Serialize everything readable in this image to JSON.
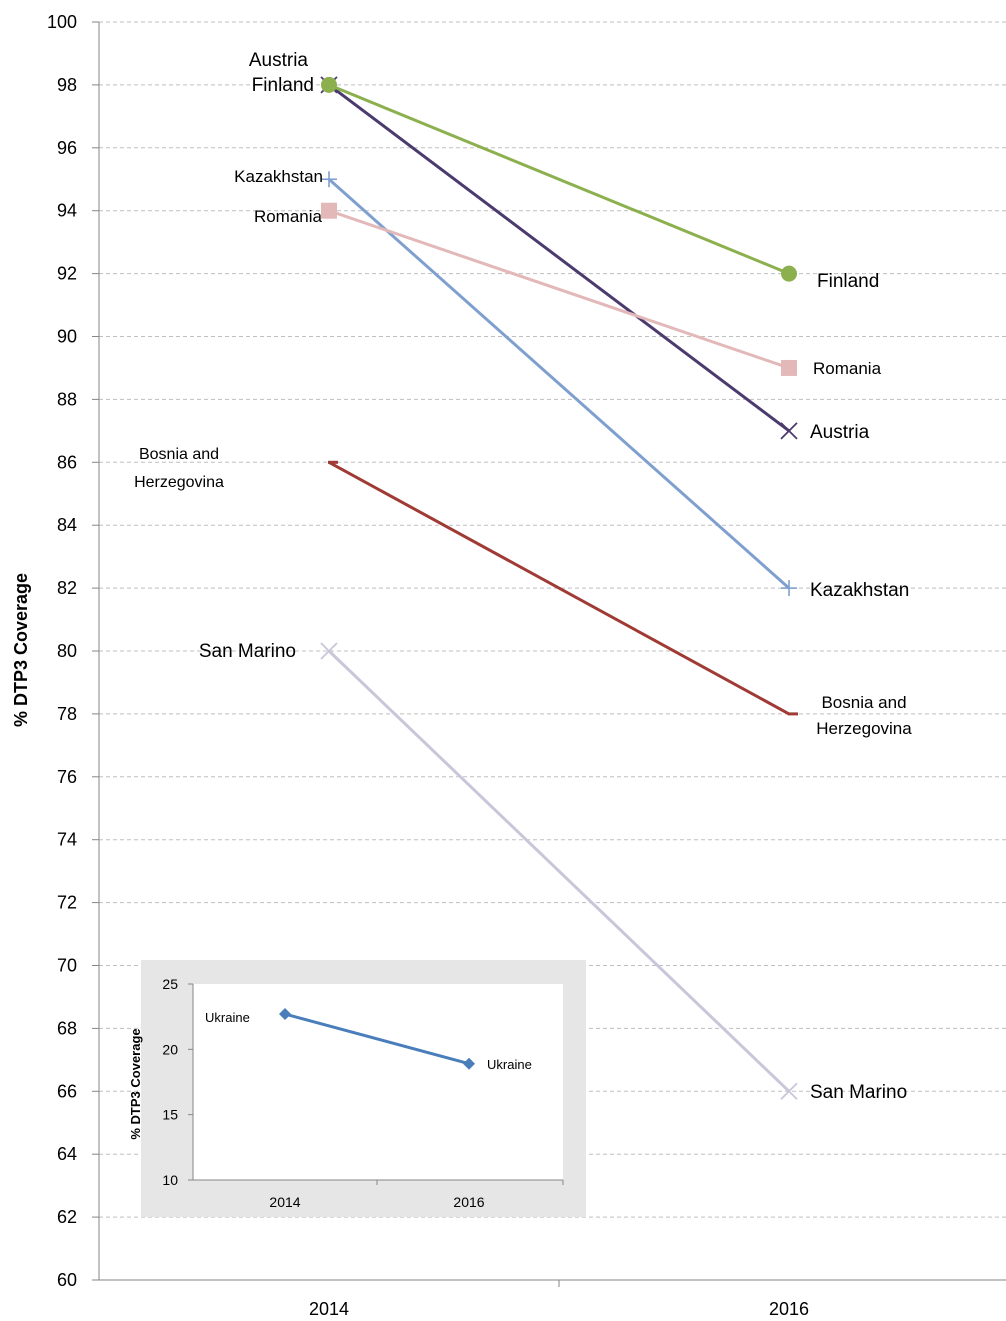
{
  "chart_data": [
    {
      "type": "line",
      "title": "",
      "xlabel": "",
      "ylabel": "% DTP3 Coverage",
      "x": [
        "2014",
        "2016"
      ],
      "ylim": [
        60,
        100
      ],
      "ytick_step": 2,
      "grid": "horizontal dashed",
      "legend": "none (direct labels)",
      "series": [
        {
          "name": "Austria",
          "values": [
            98,
            87
          ],
          "color": "#4b3a6e",
          "marker": "x"
        },
        {
          "name": "Finland",
          "values": [
            98,
            92
          ],
          "color": "#8db04f",
          "marker": "circle"
        },
        {
          "name": "Kazakhstan",
          "values": [
            95,
            82
          ],
          "color": "#7fa0cf",
          "marker": "plus"
        },
        {
          "name": "Romania",
          "values": [
            94,
            89
          ],
          "color": "#e3b8b8",
          "marker": "square"
        },
        {
          "name": "Bosnia and Herzegovina",
          "values": [
            86,
            78
          ],
          "color": "#a03a34",
          "marker": "dash"
        },
        {
          "name": "San Marino",
          "values": [
            80,
            66
          ],
          "color": "#c9c6da",
          "marker": "x"
        }
      ],
      "labels": {
        "left": {
          "austria": "Austria",
          "finland": "Finland",
          "kazakhstan": "Kazakhstan",
          "romania": "Romania",
          "bosnia_1": "Bosnia and",
          "bosnia_2": "Herzegovina",
          "san_marino": "San Marino"
        },
        "right": {
          "finland": "Finland",
          "romania": "Romania",
          "austria": "Austria",
          "kazakhstan": "Kazakhstan",
          "bosnia_1": "Bosnia and",
          "bosnia_2": "Herzegovina",
          "san_marino": "San Marino"
        }
      }
    },
    {
      "type": "line",
      "title": "",
      "xlabel": "",
      "ylabel": "% DTP3 Coverage",
      "x": [
        "2014",
        "2016"
      ],
      "ylim": [
        10,
        25
      ],
      "ytick_step": 5,
      "series": [
        {
          "name": "Ukraine",
          "values": [
            22.7,
            18.9
          ],
          "color": "#4a7ebb",
          "marker": "diamond"
        }
      ],
      "labels": {
        "left": "Ukraine",
        "right": "Ukraine"
      },
      "background": "#e6e6e6"
    }
  ]
}
